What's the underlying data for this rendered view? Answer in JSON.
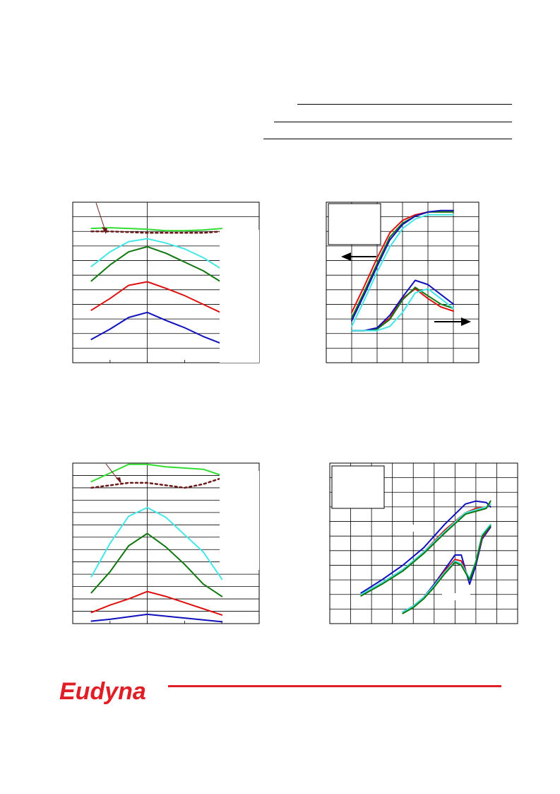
{
  "brand": {
    "logo_text": "Eudyna",
    "accent_color": "#e01e26"
  },
  "header": {
    "rules": 3
  },
  "colors": {
    "green": "#33dd33",
    "cyan": "#44e6e6",
    "dark_green": "#117711",
    "red": "#dd1111",
    "blue": "#1111bb",
    "dotted": "#6b1a1a",
    "arrow": "#6b1a1a"
  },
  "chart_data": [
    {
      "type": "line",
      "title": "",
      "xlabel": "",
      "ylabel": "",
      "grid": "horizontal",
      "xlim": [
        0,
        5
      ],
      "ylim": [
        0,
        11
      ],
      "x": [
        0.5,
        1.0,
        1.5,
        2.0,
        2.5,
        3.0,
        3.5,
        4.0
      ],
      "series": [
        {
          "color": "green",
          "values": [
            9.2,
            9.25,
            9.2,
            9.15,
            9.05,
            9.05,
            9.1,
            9.2
          ]
        },
        {
          "color": "dotted",
          "values": [
            9.0,
            9.0,
            8.95,
            8.9,
            8.9,
            8.9,
            8.9,
            9.0
          ]
        },
        {
          "color": "cyan",
          "values": [
            6.6,
            7.6,
            8.3,
            8.5,
            8.2,
            7.8,
            7.2,
            6.4
          ]
        },
        {
          "color": "dark_green",
          "values": [
            5.6,
            6.7,
            7.6,
            7.95,
            7.5,
            6.9,
            6.3,
            5.5
          ]
        },
        {
          "color": "red",
          "values": [
            3.6,
            4.4,
            5.3,
            5.55,
            5.1,
            4.6,
            4.0,
            3.4
          ]
        },
        {
          "color": "blue",
          "values": [
            1.6,
            2.3,
            3.1,
            3.45,
            2.9,
            2.4,
            1.8,
            1.3
          ]
        }
      ]
    },
    {
      "type": "line",
      "title": "",
      "xlabel": "",
      "ylabel": "",
      "grid": "both",
      "xlim": [
        0,
        6
      ],
      "ylim": [
        0,
        11.5
      ],
      "legend": "top-left",
      "groups": [
        {
          "axis": "left",
          "x": [
            1.0,
            1.5,
            2.0,
            2.5,
            3.0,
            3.5,
            4.0,
            4.5,
            5.0
          ],
          "series": [
            {
              "color": "red",
              "values": [
                3.6,
                5.5,
                7.5,
                9.3,
                10.2,
                10.6,
                10.8,
                10.8,
                10.8
              ]
            },
            {
              "color": "dark_green",
              "values": [
                3.2,
                5.1,
                7.1,
                9.0,
                10.0,
                10.5,
                10.8,
                10.8,
                10.8
              ]
            },
            {
              "color": "blue",
              "values": [
                3.0,
                4.9,
                6.9,
                8.8,
                9.9,
                10.5,
                10.8,
                10.9,
                10.9
              ]
            },
            {
              "color": "cyan",
              "values": [
                2.6,
                4.5,
                6.5,
                8.3,
                9.6,
                10.3,
                10.6,
                10.6,
                10.6
              ]
            }
          ]
        },
        {
          "axis": "right",
          "x": [
            1.0,
            1.5,
            2.0,
            2.5,
            3.0,
            3.5,
            4.0,
            4.5,
            5.0
          ],
          "series": [
            {
              "color": "red",
              "values": [
                2.3,
                2.3,
                2.5,
                3.2,
                4.6,
                5.3,
                4.6,
                4.0,
                3.7
              ]
            },
            {
              "color": "dark_green",
              "values": [
                2.3,
                2.3,
                2.4,
                3.1,
                4.5,
                5.4,
                4.8,
                4.2,
                3.9
              ]
            },
            {
              "color": "blue",
              "values": [
                2.3,
                2.3,
                2.5,
                3.4,
                4.7,
                5.9,
                5.6,
                4.9,
                4.2
              ]
            },
            {
              "color": "cyan",
              "values": [
                2.3,
                2.3,
                2.3,
                2.6,
                3.6,
                5.0,
                5.3,
                4.6,
                3.9
              ]
            }
          ]
        }
      ]
    },
    {
      "type": "line",
      "title": "",
      "xlabel": "",
      "ylabel": "",
      "grid": "horizontal",
      "xlim": [
        0,
        5
      ],
      "ylim": [
        0,
        13
      ],
      "x": [
        0.5,
        1.0,
        1.5,
        2.0,
        2.5,
        3.0,
        3.5,
        4.0
      ],
      "series": [
        {
          "color": "green",
          "values": [
            11.5,
            12.2,
            12.9,
            12.9,
            12.7,
            12.6,
            12.5,
            12.0
          ]
        },
        {
          "color": "dotted",
          "values": [
            11.0,
            11.2,
            11.4,
            11.4,
            11.2,
            11.0,
            11.3,
            11.8
          ]
        },
        {
          "color": "cyan",
          "values": [
            3.8,
            6.5,
            8.7,
            9.4,
            8.6,
            7.2,
            5.8,
            3.6
          ]
        },
        {
          "color": "dark_green",
          "values": [
            2.5,
            4.2,
            6.3,
            7.3,
            6.2,
            4.8,
            3.2,
            2.2
          ]
        },
        {
          "color": "red",
          "values": [
            0.9,
            1.5,
            2.0,
            2.6,
            2.2,
            1.7,
            1.2,
            0.7
          ]
        },
        {
          "color": "blue",
          "values": [
            0.2,
            0.35,
            0.55,
            0.75,
            0.6,
            0.45,
            0.3,
            0.15
          ]
        }
      ]
    },
    {
      "type": "line",
      "title": "",
      "xlabel": "",
      "ylabel": "",
      "grid": "both",
      "xlim": [
        0,
        9
      ],
      "ylim": [
        0,
        11
      ],
      "legend": "top-left",
      "groups": [
        {
          "x": [
            1.5,
            2.5,
            3.5,
            4.5,
            5.5,
            6.5,
            7.0,
            7.5,
            7.7
          ],
          "series": [
            {
              "color": "blue",
              "values": [
                2.1,
                3.0,
                4.0,
                5.2,
                6.8,
                8.2,
                8.4,
                8.3,
                8.0
              ]
            },
            {
              "color": "red",
              "values": [
                2.0,
                2.8,
                3.7,
                4.9,
                6.4,
                7.6,
                7.9,
                8.0,
                8.2
              ]
            },
            {
              "color": "cyan",
              "values": [
                2.0,
                2.8,
                3.7,
                4.9,
                6.3,
                7.6,
                7.8,
                8.0,
                8.2
              ]
            },
            {
              "color": "dark_green",
              "values": [
                1.9,
                2.7,
                3.6,
                4.8,
                6.2,
                7.5,
                7.7,
                7.9,
                8.4
              ]
            }
          ]
        },
        {
          "x": [
            3.5,
            4.0,
            4.5,
            5.0,
            5.5,
            6.0,
            6.3,
            6.7,
            7.0,
            7.3,
            7.7
          ],
          "series": [
            {
              "color": "blue",
              "values": [
                0.8,
                1.2,
                1.8,
                2.7,
                3.7,
                4.7,
                4.7,
                2.7,
                4.0,
                5.8,
                6.6
              ]
            },
            {
              "color": "red",
              "values": [
                0.8,
                1.2,
                1.8,
                2.6,
                3.6,
                4.4,
                4.3,
                3.0,
                4.2,
                5.9,
                6.7
              ]
            },
            {
              "color": "cyan",
              "values": [
                0.8,
                1.2,
                1.8,
                2.6,
                3.5,
                4.3,
                4.1,
                3.1,
                4.3,
                6.1,
                6.8
              ]
            },
            {
              "color": "dark_green",
              "values": [
                0.7,
                1.1,
                1.7,
                2.5,
                3.4,
                4.2,
                4.0,
                3.0,
                4.2,
                6.0,
                6.7
              ]
            }
          ]
        }
      ]
    }
  ]
}
